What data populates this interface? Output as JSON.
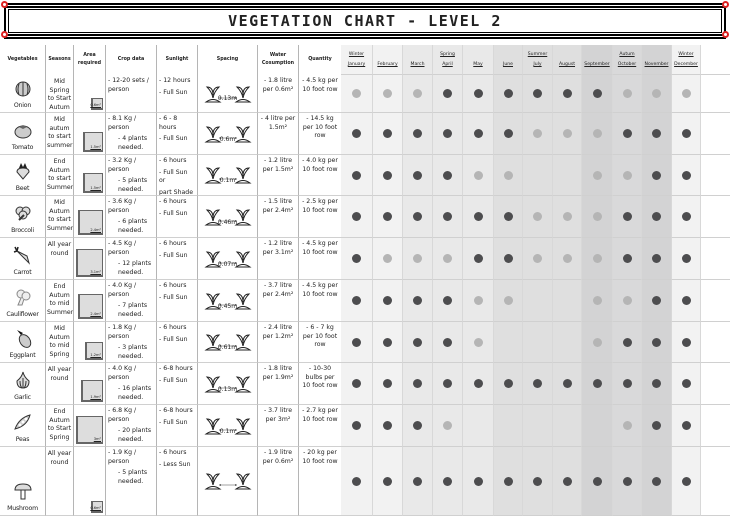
{
  "title": "VEGETATION CHART - LEVEL 2",
  "headers": {
    "vegetables": "Vegetables",
    "seasons": "Seasons",
    "area": "Area required",
    "crop": "Crop data",
    "sunlight": "Sunlight",
    "spacing": "Spacing",
    "water": "Water Cosumption",
    "quantity": "Quantity"
  },
  "months": [
    {
      "season": "Winter",
      "name": "January",
      "bg": "#f2f2f2"
    },
    {
      "season": "",
      "name": "February",
      "bg": "#f2f2f2"
    },
    {
      "season": "",
      "name": "March",
      "bg": "#e9e9e9"
    },
    {
      "season": "Spring",
      "name": "April",
      "bg": "#e9e9e9"
    },
    {
      "season": "",
      "name": "May",
      "bg": "#e9e9e9"
    },
    {
      "season": "",
      "name": "June",
      "bg": "#dfdfdf"
    },
    {
      "season": "Summer",
      "name": "July",
      "bg": "#dfdfdf"
    },
    {
      "season": "",
      "name": "August",
      "bg": "#dfdfdf"
    },
    {
      "season": "",
      "name": "September",
      "bg": "#d3d3d4"
    },
    {
      "season": "Autum",
      "name": "October",
      "bg": "#d9d9da"
    },
    {
      "season": "",
      "name": "November",
      "bg": "#d3d3d4"
    },
    {
      "season": "Winter",
      "name": "December",
      "bg": "#f2f2f2"
    }
  ],
  "colors": {
    "dot_dark": "#4d4d4f",
    "dot_light": "#b5b5b5"
  },
  "dot_legend": {
    "0": "none",
    "1": "light",
    "2": "dark"
  },
  "rows": [
    {
      "name": "Onion",
      "icon": "onion-icon",
      "season": "Mid Spring to Start Autum",
      "area": "0.6m²",
      "crop": [
        "- 12-20 sets / person"
      ],
      "sun": [
        "- 12 hours",
        "- Full Sun"
      ],
      "spacing": "0.13m",
      "water": "- 1.8 litre per 0.6m²",
      "quantity": "- 4.5 kg per 10 foot row",
      "months": [
        1,
        1,
        1,
        2,
        2,
        2,
        2,
        2,
        2,
        1,
        1,
        1
      ]
    },
    {
      "name": "Tomato",
      "icon": "tomato-icon",
      "season": "Mid autum to start summer",
      "area": "1.5m²",
      "crop": [
        "- 8.1 Kg / person",
        "- 4 plants needed."
      ],
      "sun": [
        "- 6 - 8 hours",
        "- Full Sun"
      ],
      "spacing": "0.6m",
      "water": "- 4 litre per 1.5m²",
      "quantity": "- 14.5 kg per 10 foot row",
      "months": [
        2,
        2,
        2,
        2,
        2,
        2,
        1,
        1,
        1,
        2,
        2,
        2
      ]
    },
    {
      "name": "Beet",
      "icon": "beet-icon",
      "season": "End Autum to start Summer",
      "area": "1.5m²",
      "crop": [
        "- 3.2 Kg / person",
        "- 5 plants needed."
      ],
      "sun": [
        "- 6 hours",
        "- Full Sun or",
        "part Shade"
      ],
      "spacing": "0.1m",
      "water": "- 1.2 litre per 1.5m²",
      "quantity": "- 4.0 kg per 10 foot row",
      "months": [
        2,
        2,
        2,
        2,
        1,
        1,
        0,
        0,
        1,
        1,
        2,
        2
      ]
    },
    {
      "name": "Broccoli",
      "icon": "broccoli-icon",
      "season": "Mid Autum to start Summer",
      "area": "2.4m²",
      "crop": [
        "- 3.6 Kg / person",
        "- 6 plants needed."
      ],
      "sun": [
        "- 6 hours",
        "- Full Sun"
      ],
      "spacing": "0.46m",
      "water": "- 1.5 litre per 2.4m²",
      "quantity": "- 2.5 kg per 10 foot row",
      "months": [
        2,
        2,
        2,
        2,
        2,
        2,
        1,
        1,
        1,
        2,
        2,
        2
      ]
    },
    {
      "name": "Carrot",
      "icon": "carrot-icon",
      "season": "All year round",
      "area": "3.1m²",
      "crop": [
        "- 4.5 Kg / person",
        "- 12 plants needed."
      ],
      "sun": [
        "- 6 hours",
        "- Full Sun"
      ],
      "spacing": "0.07m",
      "water": "- 1.2 litre per 3.1m²",
      "quantity": "- 4.5 kg per 10 foot row",
      "months": [
        2,
        1,
        1,
        1,
        2,
        2,
        1,
        1,
        1,
        2,
        2,
        2
      ]
    },
    {
      "name": "Cauliflower",
      "icon": "cauliflower-icon",
      "season": "End Autum to mid Summer",
      "area": "2.4m²",
      "crop": [
        "- 4.0 Kg / person",
        "- 7 plants needed."
      ],
      "sun": [
        "- 6 hours",
        "- Full Sun"
      ],
      "spacing": "0.45m",
      "water": "- 3.7 litre per 2.4m²",
      "quantity": "- 4.5 kg per 10 foot row",
      "months": [
        2,
        2,
        2,
        2,
        1,
        1,
        0,
        0,
        1,
        1,
        2,
        2
      ]
    },
    {
      "name": "Eggplant",
      "icon": "eggplant-icon",
      "season": "Mid Autum to mid Spring",
      "area": "1.2m²",
      "crop": [
        "- 1.8 Kg / person",
        "- 3 plants needed."
      ],
      "sun": [
        "- 6 hours",
        "- Full Sun"
      ],
      "spacing": "0.61m",
      "water": "- 2.4 litre per 1.2m²",
      "quantity": "- 6 - 7 kg per 10 foot row",
      "months": [
        2,
        2,
        2,
        2,
        1,
        0,
        0,
        0,
        1,
        2,
        2,
        2
      ]
    },
    {
      "name": "Garlic",
      "icon": "garlic-icon",
      "season": "All year round",
      "area": "1.9m²",
      "crop": [
        "- 4.0 Kg / person",
        "- 16 plants needed."
      ],
      "sun": [
        "- 6-8 hours",
        "- Full Sun"
      ],
      "spacing": "0.13m",
      "water": "- 1.8 litre per 1.9m²",
      "quantity": "- 10-30 bulbs per 10 foot row",
      "months": [
        2,
        2,
        2,
        2,
        2,
        2,
        2,
        2,
        2,
        2,
        2,
        2
      ]
    },
    {
      "name": "Peas",
      "icon": "peas-icon",
      "season": "End Autum to Start Spring",
      "area": "3m²",
      "crop": [
        "- 6.8 Kg / person",
        "- 20 plants needed."
      ],
      "sun": [
        "- 6-8 hours",
        "- Full Sun"
      ],
      "spacing": "0.1m",
      "water": "- 3.7 litre per 3m²",
      "quantity": "- 2.7 kg per 10 foot row",
      "months": [
        2,
        2,
        2,
        1,
        0,
        0,
        0,
        0,
        0,
        1,
        2,
        2
      ]
    },
    {
      "name": "Mushroom",
      "icon": "mushroom-icon",
      "season": "All year round",
      "area": "0.6m²",
      "crop": [
        "- 1.9 Kg / person",
        "- 5 plants needed."
      ],
      "sun": [
        "- 6 hours",
        "- Less Sun"
      ],
      "spacing": "",
      "water": "- 1.9 litre per 0.6m²",
      "quantity": "- 20 kg per 10 foot row",
      "months": [
        2,
        2,
        2,
        2,
        2,
        2,
        2,
        2,
        2,
        2,
        2,
        2
      ]
    }
  ]
}
